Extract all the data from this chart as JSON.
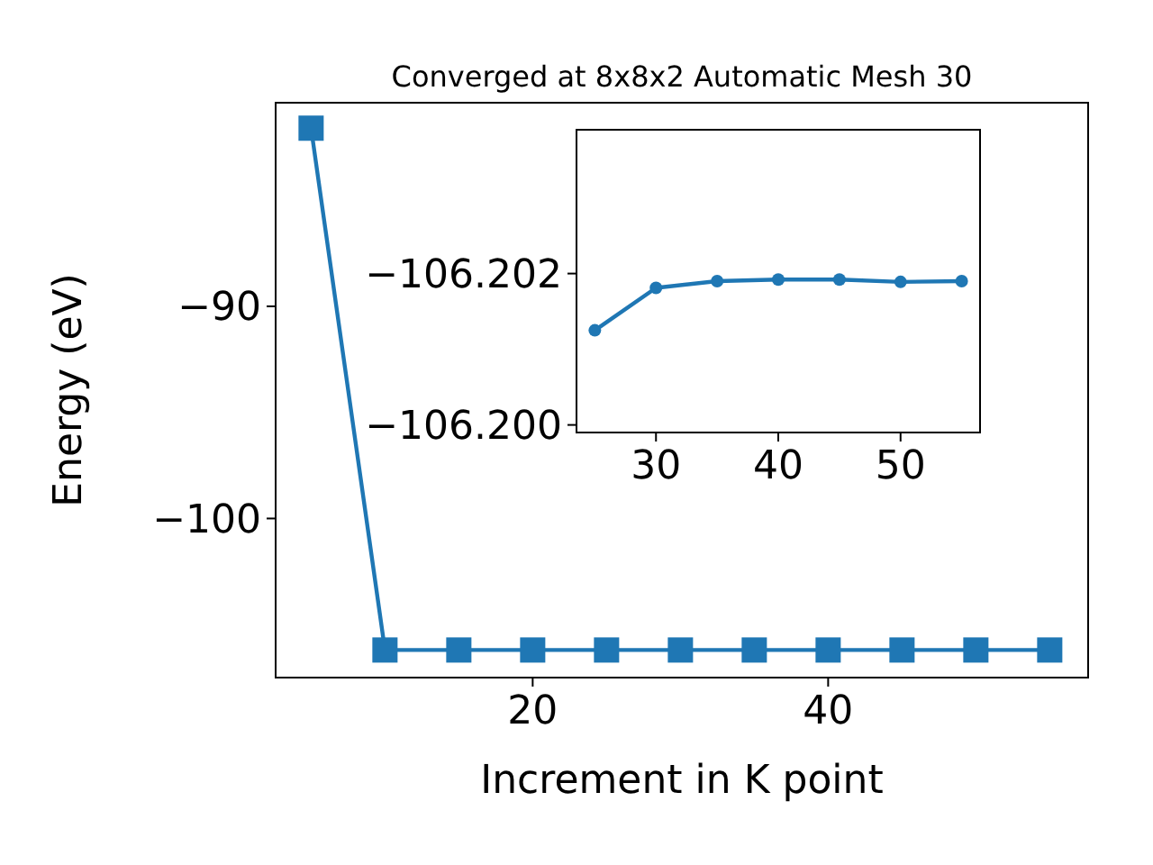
{
  "chart_data": [
    {
      "type": "line",
      "title": "Converged at 8x8x2 Automatic Mesh 30",
      "xlabel": "Increment in K point",
      "ylabel": "Energy (eV)",
      "x": [
        5,
        10,
        15,
        20,
        25,
        30,
        35,
        40,
        45,
        50,
        55
      ],
      "series": [
        {
          "color": "#1f77b4",
          "values": [
            -81.6,
            -106.2,
            -106.2,
            -106.2,
            -106.2,
            -106.2,
            -106.2,
            -106.2,
            -106.2,
            -106.2,
            -106.2
          ]
        }
      ],
      "xlim": [
        2.6,
        57.6
      ],
      "ylim": [
        -107.5,
        -80.4
      ],
      "xticks": [
        20,
        40
      ],
      "yticks": [
        -90,
        -100
      ],
      "marker": "square",
      "line_style": "solid",
      "grid": false
    },
    {
      "type": "line",
      "x": [
        25,
        30,
        35,
        40,
        45,
        50,
        55
      ],
      "series": [
        {
          "color": "#1f77b4",
          "values": [
            -106.20125,
            -106.20181,
            -106.2019,
            -106.20192,
            -106.20192,
            -106.20189,
            -106.2019
          ]
        }
      ],
      "xlim": [
        23.5,
        56.5
      ],
      "ylim": [
        -106.1999,
        -106.2039
      ],
      "xticks": [
        30,
        40,
        50
      ],
      "yticks": [
        {
          "value": -106.202,
          "label": "−106.202"
        },
        {
          "value": -106.2,
          "label": "−106.200"
        }
      ],
      "marker": "circle",
      "line_style": "solid",
      "grid": false
    }
  ]
}
